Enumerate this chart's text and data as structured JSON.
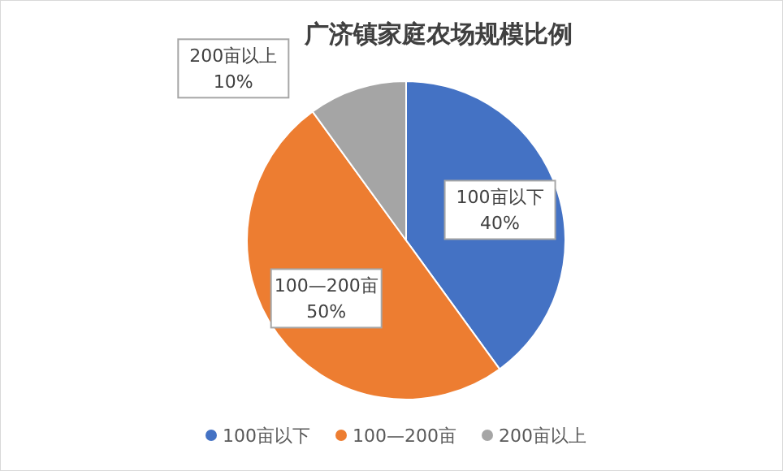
{
  "chart_data": {
    "type": "pie",
    "title": "广济镇家庭农场规模比例",
    "categories": [
      "100亩以下",
      "100—200亩",
      "200亩以上"
    ],
    "values": [
      40,
      50,
      10
    ],
    "colors": [
      "#4472c4",
      "#ed7d31",
      "#a5a5a5"
    ],
    "value_labels": [
      "40%",
      "50%",
      "10%"
    ],
    "legend": "bottom"
  }
}
